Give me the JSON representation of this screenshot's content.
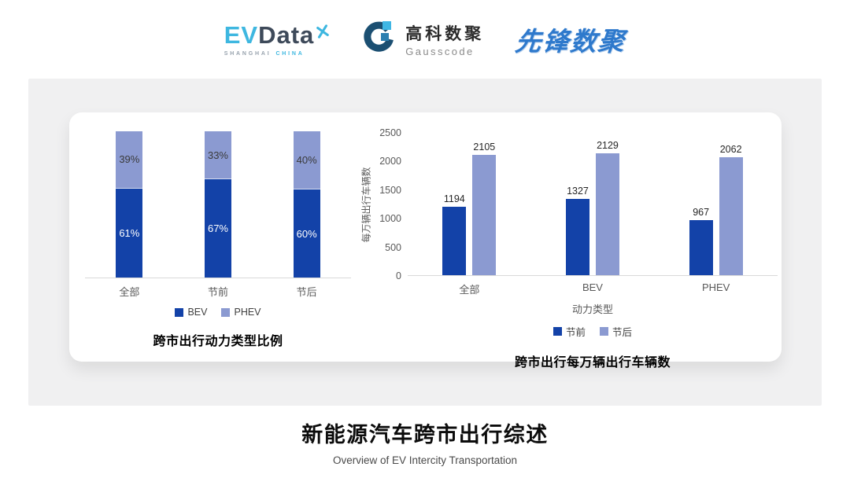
{
  "header": {
    "evdata": {
      "ev": "EV",
      "data": "Data",
      "sub1": "SHANGHAI",
      "sub2": "CHINA"
    },
    "gausscode": {
      "cn": "高科数聚",
      "en": "Gausscode"
    },
    "pioneer": {
      "text": "先锋数聚"
    }
  },
  "colors": {
    "bev_dark_blue": "#1342A8",
    "phev_light_purple": "#8B9AD1",
    "axis_gray": "#D9D9D9",
    "label_gray": "#595959",
    "logo_light_blue": "#3EB7E0",
    "logo_dark_slate": "#3E4A5A",
    "pioneer_blue": "#2E79CC"
  },
  "chart_data": [
    {
      "type": "bar",
      "subtype": "stacked-percent",
      "title": "跨市出行动力类型比例",
      "categories": [
        "全部",
        "节前",
        "节后"
      ],
      "series": [
        {
          "name": "BEV",
          "values": [
            61,
            67,
            60
          ],
          "color": "#1342A8",
          "label_color": "#ffffff"
        },
        {
          "name": "PHEV",
          "values": [
            39,
            33,
            40
          ],
          "color": "#8B9AD1",
          "label_color": "#3a3a3a"
        }
      ],
      "value_suffix": "%",
      "ylim": [
        0,
        100
      ],
      "grid": false,
      "legend_position": "bottom"
    },
    {
      "type": "bar",
      "subtype": "grouped",
      "title": "跨市出行每万辆出行车辆数",
      "categories": [
        "全部",
        "BEV",
        "PHEV"
      ],
      "xlabel": "动力类型",
      "ylabel": "每万辆出行车辆数",
      "ylim": [
        0,
        2500
      ],
      "yticks": [
        0,
        500,
        1000,
        1500,
        2000,
        2500
      ],
      "series": [
        {
          "name": "节前",
          "values": [
            1194,
            1327,
            967
          ],
          "color": "#1342A8"
        },
        {
          "name": "节后",
          "values": [
            2105,
            2129,
            2062
          ],
          "color": "#8B9AD1"
        }
      ],
      "grid": false,
      "legend_position": "bottom"
    }
  ],
  "footer": {
    "title": "新能源汽车跨市出行综述",
    "subtitle": "Overview of EV Intercity Transportation"
  }
}
